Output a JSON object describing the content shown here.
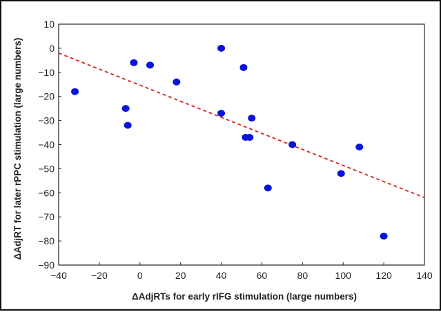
{
  "chart_data": {
    "type": "scatter",
    "xlabel": "ΔAdjRTs for early rIFG stimulation (large numbers)",
    "ylabel": "ΔAdjRT for later rPPC stimulation (large numbers)",
    "xlim": [
      -40,
      140
    ],
    "ylim": [
      -90,
      10
    ],
    "x_ticks": [
      "−40",
      "−20",
      "0",
      "20",
      "40",
      "60",
      "80",
      "100",
      "120",
      "140"
    ],
    "y_ticks": [
      "10",
      "0",
      "−10",
      "−20",
      "−30",
      "−40",
      "−50",
      "−60",
      "−70",
      "−80",
      "−90"
    ],
    "x_tick_values": [
      -40,
      -20,
      0,
      20,
      40,
      60,
      80,
      100,
      120,
      140
    ],
    "y_tick_values": [
      10,
      0,
      -10,
      -20,
      -30,
      -40,
      -50,
      -60,
      -70,
      -80,
      -90
    ],
    "grid": false,
    "points": [
      {
        "x": -32,
        "y": -18
      },
      {
        "x": -7,
        "y": -25
      },
      {
        "x": -6,
        "y": -32
      },
      {
        "x": -3,
        "y": -6
      },
      {
        "x": 5,
        "y": -7
      },
      {
        "x": 18,
        "y": -14
      },
      {
        "x": 40,
        "y": 0
      },
      {
        "x": 40,
        "y": -27
      },
      {
        "x": 51,
        "y": -8
      },
      {
        "x": 52,
        "y": -37
      },
      {
        "x": 54,
        "y": -37
      },
      {
        "x": 55,
        "y": -29
      },
      {
        "x": 63,
        "y": -58
      },
      {
        "x": 75,
        "y": -40
      },
      {
        "x": 99,
        "y": -52
      },
      {
        "x": 108,
        "y": -41
      },
      {
        "x": 120,
        "y": -78
      }
    ],
    "trendline": {
      "style": "dashed",
      "x": [
        -40,
        140
      ],
      "y": [
        -2,
        -62
      ]
    },
    "colors": {
      "points": "#0a14d8",
      "trendline": "#d9302c",
      "axes": "#222222"
    }
  }
}
